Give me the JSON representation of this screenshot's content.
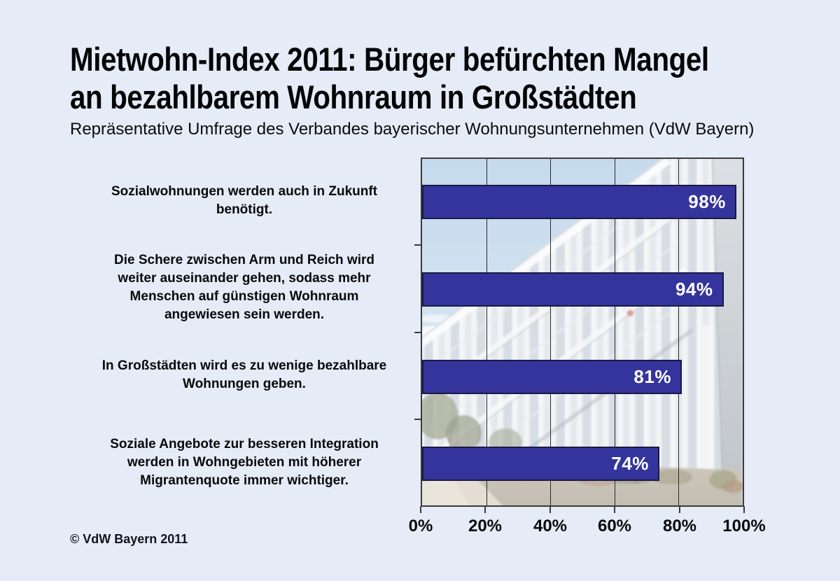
{
  "header": {
    "title_line1": "Mietwohn-Index 2011: Bürger befürchten Mangel",
    "title_line2": "an bezahlbarem Wohnraum in Großstädten",
    "subtitle": "Repräsentative Umfrage des Verbandes bayerischer Wohnungsunternehmen (VdW Bayern)"
  },
  "chart_data": {
    "type": "bar",
    "orientation": "horizontal",
    "title": "Mietwohn-Index 2011: Bürger befürchten Mangel an bezahlbarem Wohnraum in Großstädten",
    "subtitle": "Repräsentative Umfrage des Verbandes bayerischer Wohnungsunternehmen (VdW Bayern)",
    "categories": [
      [
        "Sozialwohnungen werden auch in Zukunft",
        "benötigt."
      ],
      [
        "Die Schere zwischen Arm und Reich wird",
        "weiter auseinander gehen, sodass mehr",
        "Menschen auf günstigen Wohnraum",
        "angewiesen sein werden."
      ],
      [
        "In Großstädten wird es zu wenige bezahlbare",
        "Wohnungen geben."
      ],
      [
        "Soziale Angebote zur besseren Integration",
        "werden in Wohngebieten mit höherer",
        "Migrantenquote immer wichtiger."
      ]
    ],
    "values": [
      98,
      94,
      81,
      74
    ],
    "value_labels": [
      "98%",
      "94%",
      "81%",
      "74%"
    ],
    "xlim": [
      0,
      100
    ],
    "x_tick_values": [
      0,
      20,
      40,
      60,
      80,
      100
    ],
    "x_tick_labels": [
      "0%",
      "20%",
      "40%",
      "60%",
      "80%",
      "100%"
    ],
    "grid": true,
    "legend": false,
    "bar_color": "#34349c",
    "bar_border_color": "#191945",
    "value_label_color": "#ffffff",
    "gridline_color": "#2a2a2a",
    "plot_background_description": "faded photo of a modern apartment building with glass balconies, blue sky, shrubs and a footpath"
  },
  "footer": {
    "copyright": "© VdW Bayern 2011"
  },
  "colors": {
    "page_background": "#e5ecf8",
    "text": "#000000"
  }
}
